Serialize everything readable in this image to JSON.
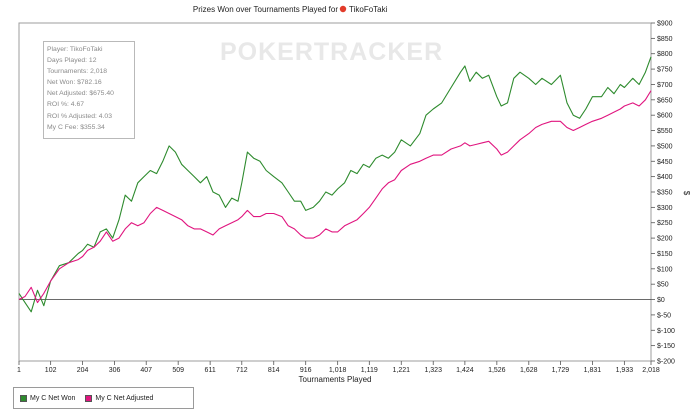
{
  "window": {
    "title_prefix": "Prizes Won over Tournaments Played for",
    "player_name": "TikoFoTaki"
  },
  "watermark": "POKERTRACKER",
  "info_box": {
    "lines": [
      "Player: TikoFoTaki",
      "Days Played: 12",
      "Tournaments: 2,018",
      "Net Won: $782.16",
      "Net Adjusted: $675.40",
      "ROI %: 4.67",
      "ROI % Adjusted: 4.03",
      "My C Fee: $355.34"
    ]
  },
  "legend": [
    {
      "label": "My C Net Won",
      "color": "#2e8b2e"
    },
    {
      "label": "My C Net Adjusted",
      "color": "#e0157f"
    }
  ],
  "chart_data": {
    "type": "line",
    "title": "Prizes Won over Tournaments Played for TikoFoTaki",
    "xlabel": "Tournaments Played",
    "ylabel": "$",
    "xlim": [
      1,
      2018
    ],
    "ylim": [
      -200,
      900
    ],
    "x_ticks": [
      "1",
      "102",
      "204",
      "306",
      "407",
      "509",
      "611",
      "712",
      "814",
      "916",
      "1,018",
      "1,119",
      "1,221",
      "1,323",
      "1,424",
      "1,526",
      "1,628",
      "1,729",
      "1,831",
      "1,933",
      "2,018"
    ],
    "y_ticks": [
      "$-200",
      "$-150",
      "$-100",
      "$-50",
      "$0",
      "$50",
      "$100",
      "$150",
      "$200",
      "$250",
      "$300",
      "$350",
      "$400",
      "$450",
      "$500",
      "$550",
      "$600",
      "$650",
      "$700",
      "$750",
      "$800",
      "$850",
      "$900"
    ],
    "grid": false,
    "legend_position": "bottom-left",
    "series": [
      {
        "name": "My C Net Won",
        "color": "#2e8b2e",
        "points": [
          [
            1,
            20
          ],
          [
            20,
            -10
          ],
          [
            40,
            -40
          ],
          [
            60,
            30
          ],
          [
            80,
            -20
          ],
          [
            102,
            60
          ],
          [
            130,
            110
          ],
          [
            160,
            120
          ],
          [
            190,
            150
          ],
          [
            204,
            160
          ],
          [
            220,
            180
          ],
          [
            240,
            170
          ],
          [
            260,
            220
          ],
          [
            280,
            230
          ],
          [
            300,
            200
          ],
          [
            320,
            260
          ],
          [
            340,
            340
          ],
          [
            360,
            320
          ],
          [
            380,
            380
          ],
          [
            400,
            400
          ],
          [
            420,
            420
          ],
          [
            440,
            410
          ],
          [
            460,
            450
          ],
          [
            480,
            500
          ],
          [
            500,
            480
          ],
          [
            520,
            440
          ],
          [
            540,
            420
          ],
          [
            560,
            400
          ],
          [
            580,
            380
          ],
          [
            600,
            400
          ],
          [
            620,
            350
          ],
          [
            640,
            340
          ],
          [
            660,
            300
          ],
          [
            680,
            330
          ],
          [
            700,
            320
          ],
          [
            712,
            380
          ],
          [
            730,
            480
          ],
          [
            750,
            460
          ],
          [
            770,
            450
          ],
          [
            790,
            420
          ],
          [
            814,
            400
          ],
          [
            840,
            380
          ],
          [
            860,
            350
          ],
          [
            880,
            320
          ],
          [
            900,
            320
          ],
          [
            916,
            290
          ],
          [
            940,
            300
          ],
          [
            960,
            320
          ],
          [
            980,
            350
          ],
          [
            1000,
            340
          ],
          [
            1018,
            360
          ],
          [
            1040,
            380
          ],
          [
            1060,
            420
          ],
          [
            1080,
            410
          ],
          [
            1100,
            440
          ],
          [
            1119,
            430
          ],
          [
            1140,
            460
          ],
          [
            1160,
            470
          ],
          [
            1180,
            460
          ],
          [
            1200,
            480
          ],
          [
            1221,
            520
          ],
          [
            1250,
            500
          ],
          [
            1280,
            540
          ],
          [
            1300,
            600
          ],
          [
            1323,
            620
          ],
          [
            1350,
            640
          ],
          [
            1380,
            690
          ],
          [
            1410,
            740
          ],
          [
            1424,
            760
          ],
          [
            1440,
            710
          ],
          [
            1460,
            740
          ],
          [
            1480,
            720
          ],
          [
            1500,
            730
          ],
          [
            1526,
            660
          ],
          [
            1540,
            630
          ],
          [
            1560,
            640
          ],
          [
            1580,
            720
          ],
          [
            1600,
            740
          ],
          [
            1628,
            720
          ],
          [
            1650,
            700
          ],
          [
            1670,
            720
          ],
          [
            1700,
            700
          ],
          [
            1729,
            730
          ],
          [
            1750,
            640
          ],
          [
            1770,
            600
          ],
          [
            1790,
            590
          ],
          [
            1810,
            620
          ],
          [
            1831,
            660
          ],
          [
            1860,
            660
          ],
          [
            1880,
            690
          ],
          [
            1900,
            670
          ],
          [
            1920,
            700
          ],
          [
            1933,
            690
          ],
          [
            1960,
            720
          ],
          [
            1980,
            700
          ],
          [
            2000,
            740
          ],
          [
            2018,
            790
          ]
        ]
      },
      {
        "name": "My C Net Adjusted",
        "color": "#e0157f",
        "points": [
          [
            1,
            0
          ],
          [
            20,
            10
          ],
          [
            40,
            40
          ],
          [
            60,
            -10
          ],
          [
            80,
            20
          ],
          [
            102,
            60
          ],
          [
            130,
            100
          ],
          [
            160,
            120
          ],
          [
            190,
            130
          ],
          [
            204,
            140
          ],
          [
            220,
            160
          ],
          [
            240,
            170
          ],
          [
            260,
            190
          ],
          [
            280,
            220
          ],
          [
            300,
            190
          ],
          [
            320,
            200
          ],
          [
            340,
            230
          ],
          [
            360,
            250
          ],
          [
            380,
            240
          ],
          [
            400,
            250
          ],
          [
            420,
            280
          ],
          [
            440,
            300
          ],
          [
            460,
            290
          ],
          [
            480,
            280
          ],
          [
            500,
            270
          ],
          [
            520,
            260
          ],
          [
            540,
            240
          ],
          [
            560,
            230
          ],
          [
            580,
            230
          ],
          [
            600,
            220
          ],
          [
            620,
            210
          ],
          [
            640,
            230
          ],
          [
            660,
            240
          ],
          [
            680,
            250
          ],
          [
            700,
            260
          ],
          [
            712,
            270
          ],
          [
            730,
            290
          ],
          [
            750,
            270
          ],
          [
            770,
            270
          ],
          [
            790,
            280
          ],
          [
            814,
            280
          ],
          [
            840,
            270
          ],
          [
            860,
            240
          ],
          [
            880,
            230
          ],
          [
            900,
            210
          ],
          [
            916,
            200
          ],
          [
            940,
            200
          ],
          [
            960,
            210
          ],
          [
            980,
            230
          ],
          [
            1000,
            220
          ],
          [
            1018,
            220
          ],
          [
            1040,
            240
          ],
          [
            1060,
            250
          ],
          [
            1080,
            260
          ],
          [
            1100,
            280
          ],
          [
            1119,
            300
          ],
          [
            1140,
            330
          ],
          [
            1160,
            360
          ],
          [
            1180,
            380
          ],
          [
            1200,
            390
          ],
          [
            1221,
            420
          ],
          [
            1250,
            440
          ],
          [
            1280,
            450
          ],
          [
            1300,
            460
          ],
          [
            1323,
            470
          ],
          [
            1350,
            470
          ],
          [
            1380,
            490
          ],
          [
            1410,
            500
          ],
          [
            1424,
            510
          ],
          [
            1440,
            500
          ],
          [
            1460,
            505
          ],
          [
            1480,
            510
          ],
          [
            1500,
            515
          ],
          [
            1526,
            490
          ],
          [
            1540,
            470
          ],
          [
            1560,
            480
          ],
          [
            1580,
            500
          ],
          [
            1600,
            520
          ],
          [
            1628,
            540
          ],
          [
            1650,
            560
          ],
          [
            1670,
            570
          ],
          [
            1700,
            580
          ],
          [
            1729,
            580
          ],
          [
            1750,
            560
          ],
          [
            1770,
            550
          ],
          [
            1790,
            560
          ],
          [
            1810,
            570
          ],
          [
            1831,
            580
          ],
          [
            1860,
            590
          ],
          [
            1880,
            600
          ],
          [
            1900,
            610
          ],
          [
            1920,
            620
          ],
          [
            1933,
            630
          ],
          [
            1960,
            640
          ],
          [
            1980,
            630
          ],
          [
            2000,
            650
          ],
          [
            2018,
            680
          ]
        ]
      }
    ]
  }
}
